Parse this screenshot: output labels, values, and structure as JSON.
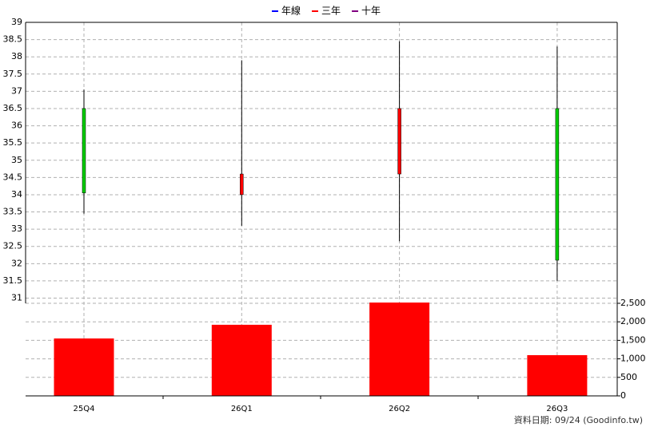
{
  "chart_data": [
    {
      "type": "candlestick",
      "categories": [
        "25Q4",
        "26Q1",
        "26Q2",
        "26Q3"
      ],
      "open": [
        36.5,
        34.0,
        34.6,
        36.5
      ],
      "high": [
        37.05,
        37.9,
        38.45,
        38.3
      ],
      "low": [
        33.45,
        33.1,
        32.65,
        31.5
      ],
      "close": [
        34.05,
        34.6,
        36.5,
        32.1
      ],
      "up_color": "#ff0000",
      "down_color": "#00cc00",
      "ylim": [
        30.85,
        39
      ],
      "yticks": [
        31,
        31.5,
        32,
        32.5,
        33,
        33.5,
        34,
        34.5,
        35,
        35.5,
        36,
        36.5,
        37,
        37.5,
        38,
        38.5,
        39
      ],
      "grid": true,
      "series": [
        {
          "name": "年線",
          "color": "#0000ff"
        },
        {
          "name": "三年",
          "color": "#ff0000"
        },
        {
          "name": "十年",
          "color": "#800080"
        }
      ]
    },
    {
      "type": "bar",
      "categories": [
        "25Q4",
        "26Q1",
        "26Q2",
        "26Q3"
      ],
      "values": [
        1550,
        1920,
        2520,
        1100
      ],
      "color": "#ff0000",
      "ylim": [
        0,
        2500
      ],
      "yticks": [
        0,
        {
          "value": 500,
          "label": "500"
        },
        {
          "value": 1000,
          "label": "1,000"
        },
        {
          "value": 1500,
          "label": "1,500"
        },
        {
          "value": 2000,
          "label": "2,000"
        },
        {
          "value": 2500,
          "label": "2,500"
        }
      ],
      "grid": true
    }
  ],
  "footer": "資料日期: 09/24  (Goodinfo.tw)"
}
